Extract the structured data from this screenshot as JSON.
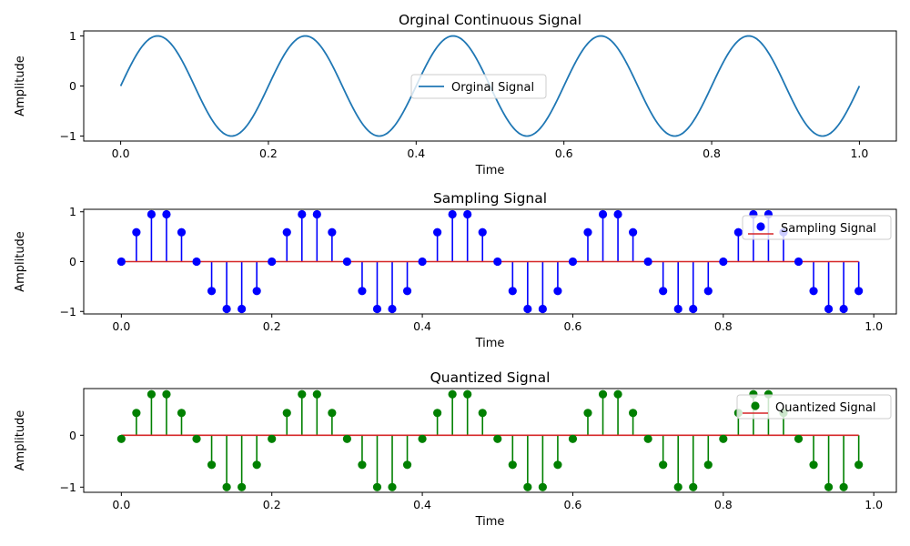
{
  "chart_data": [
    {
      "type": "line",
      "title": "Orginal Continuous Signal",
      "xlabel": "Time",
      "ylabel": "Amplitude",
      "xlim": [
        -0.05,
        1.05
      ],
      "ylim": [
        -1.1,
        1.1
      ],
      "xticks": [
        "0.0",
        "0.2",
        "0.4",
        "0.6",
        "0.8",
        "1.0"
      ],
      "yticks": [
        "−1",
        "0",
        "1"
      ],
      "legend_position": "center-right",
      "series": [
        {
          "name": "Orginal Signal",
          "color": "#1f77b4",
          "frequency_hz": 5,
          "amplitude": 1,
          "function": "sin(2*pi*5*t)",
          "t_range": [
            0,
            1
          ]
        }
      ]
    },
    {
      "type": "stem",
      "title": "Sampling Signal",
      "xlabel": "Time",
      "ylabel": "Amplitude",
      "xlim": [
        -0.05,
        1.03
      ],
      "ylim": [
        -1.05,
        1.05
      ],
      "xticks": [
        "0.0",
        "0.2",
        "0.4",
        "0.6",
        "0.8",
        "1.0"
      ],
      "yticks": [
        "−1",
        "0",
        "1"
      ],
      "legend_position": "top-right",
      "marker_color": "#0000ff",
      "baseline_color": "#d62728",
      "series": [
        {
          "name": "Sampling Signal",
          "x": [
            0.0,
            0.02,
            0.04,
            0.06,
            0.08,
            0.1,
            0.12,
            0.14,
            0.16,
            0.18,
            0.2,
            0.22,
            0.24,
            0.26,
            0.28,
            0.3,
            0.32,
            0.34,
            0.36,
            0.38,
            0.4,
            0.42,
            0.44,
            0.46,
            0.48,
            0.5,
            0.52,
            0.54,
            0.56,
            0.58,
            0.6,
            0.62,
            0.64,
            0.66,
            0.68,
            0.7,
            0.72,
            0.74,
            0.76,
            0.78,
            0.8,
            0.82,
            0.84,
            0.86,
            0.88,
            0.9,
            0.92,
            0.94,
            0.96,
            0.98
          ],
          "values": [
            0,
            0.59,
            0.95,
            0.95,
            0.59,
            0,
            -0.59,
            -0.95,
            -0.95,
            -0.59,
            0,
            0.59,
            0.95,
            0.95,
            0.59,
            0,
            -0.59,
            -0.95,
            -0.95,
            -0.59,
            0,
            0.59,
            0.95,
            0.95,
            0.59,
            0,
            -0.59,
            -0.95,
            -0.95,
            -0.59,
            0,
            0.59,
            0.95,
            0.95,
            0.59,
            0,
            -0.59,
            -0.95,
            -0.95,
            -0.59,
            0,
            0.59,
            0.95,
            0.95,
            0.59,
            0,
            -0.59,
            -0.95,
            -0.95,
            -0.59
          ]
        }
      ]
    },
    {
      "type": "stem",
      "title": "Quantized Signal",
      "xlabel": "Time",
      "ylabel": "Amplitude",
      "xlim": [
        -0.05,
        1.03
      ],
      "ylim": [
        -1.1,
        0.9
      ],
      "xticks": [
        "0.0",
        "0.2",
        "0.4",
        "0.6",
        "0.8",
        "1.0"
      ],
      "yticks": [
        "−1",
        "0"
      ],
      "legend_position": "top-right",
      "marker_color": "#008000",
      "baseline_color": "#d62728",
      "series": [
        {
          "name": "Quantized Signal",
          "x": [
            0.0,
            0.02,
            0.04,
            0.06,
            0.08,
            0.1,
            0.12,
            0.14,
            0.16,
            0.18,
            0.2,
            0.22,
            0.24,
            0.26,
            0.28,
            0.3,
            0.32,
            0.34,
            0.36,
            0.38,
            0.4,
            0.42,
            0.44,
            0.46,
            0.48,
            0.5,
            0.52,
            0.54,
            0.56,
            0.58,
            0.6,
            0.62,
            0.64,
            0.66,
            0.68,
            0.7,
            0.72,
            0.74,
            0.76,
            0.78,
            0.8,
            0.82,
            0.84,
            0.86,
            0.88,
            0.9,
            0.92,
            0.94,
            0.96,
            0.98
          ],
          "values": [
            -0.07,
            0.43,
            0.79,
            0.79,
            0.43,
            -0.07,
            -0.57,
            -1.0,
            -1.0,
            -0.57,
            -0.07,
            0.43,
            0.79,
            0.79,
            0.43,
            -0.07,
            -0.57,
            -1.0,
            -1.0,
            -0.57,
            -0.07,
            0.43,
            0.79,
            0.79,
            0.43,
            -0.07,
            -0.57,
            -1.0,
            -1.0,
            -0.57,
            -0.07,
            0.43,
            0.79,
            0.79,
            0.43,
            -0.07,
            -0.57,
            -1.0,
            -1.0,
            -0.57,
            -0.07,
            0.43,
            0.79,
            0.79,
            0.43,
            -0.07,
            -0.57,
            -1.0,
            -1.0,
            -0.57
          ]
        }
      ]
    }
  ]
}
